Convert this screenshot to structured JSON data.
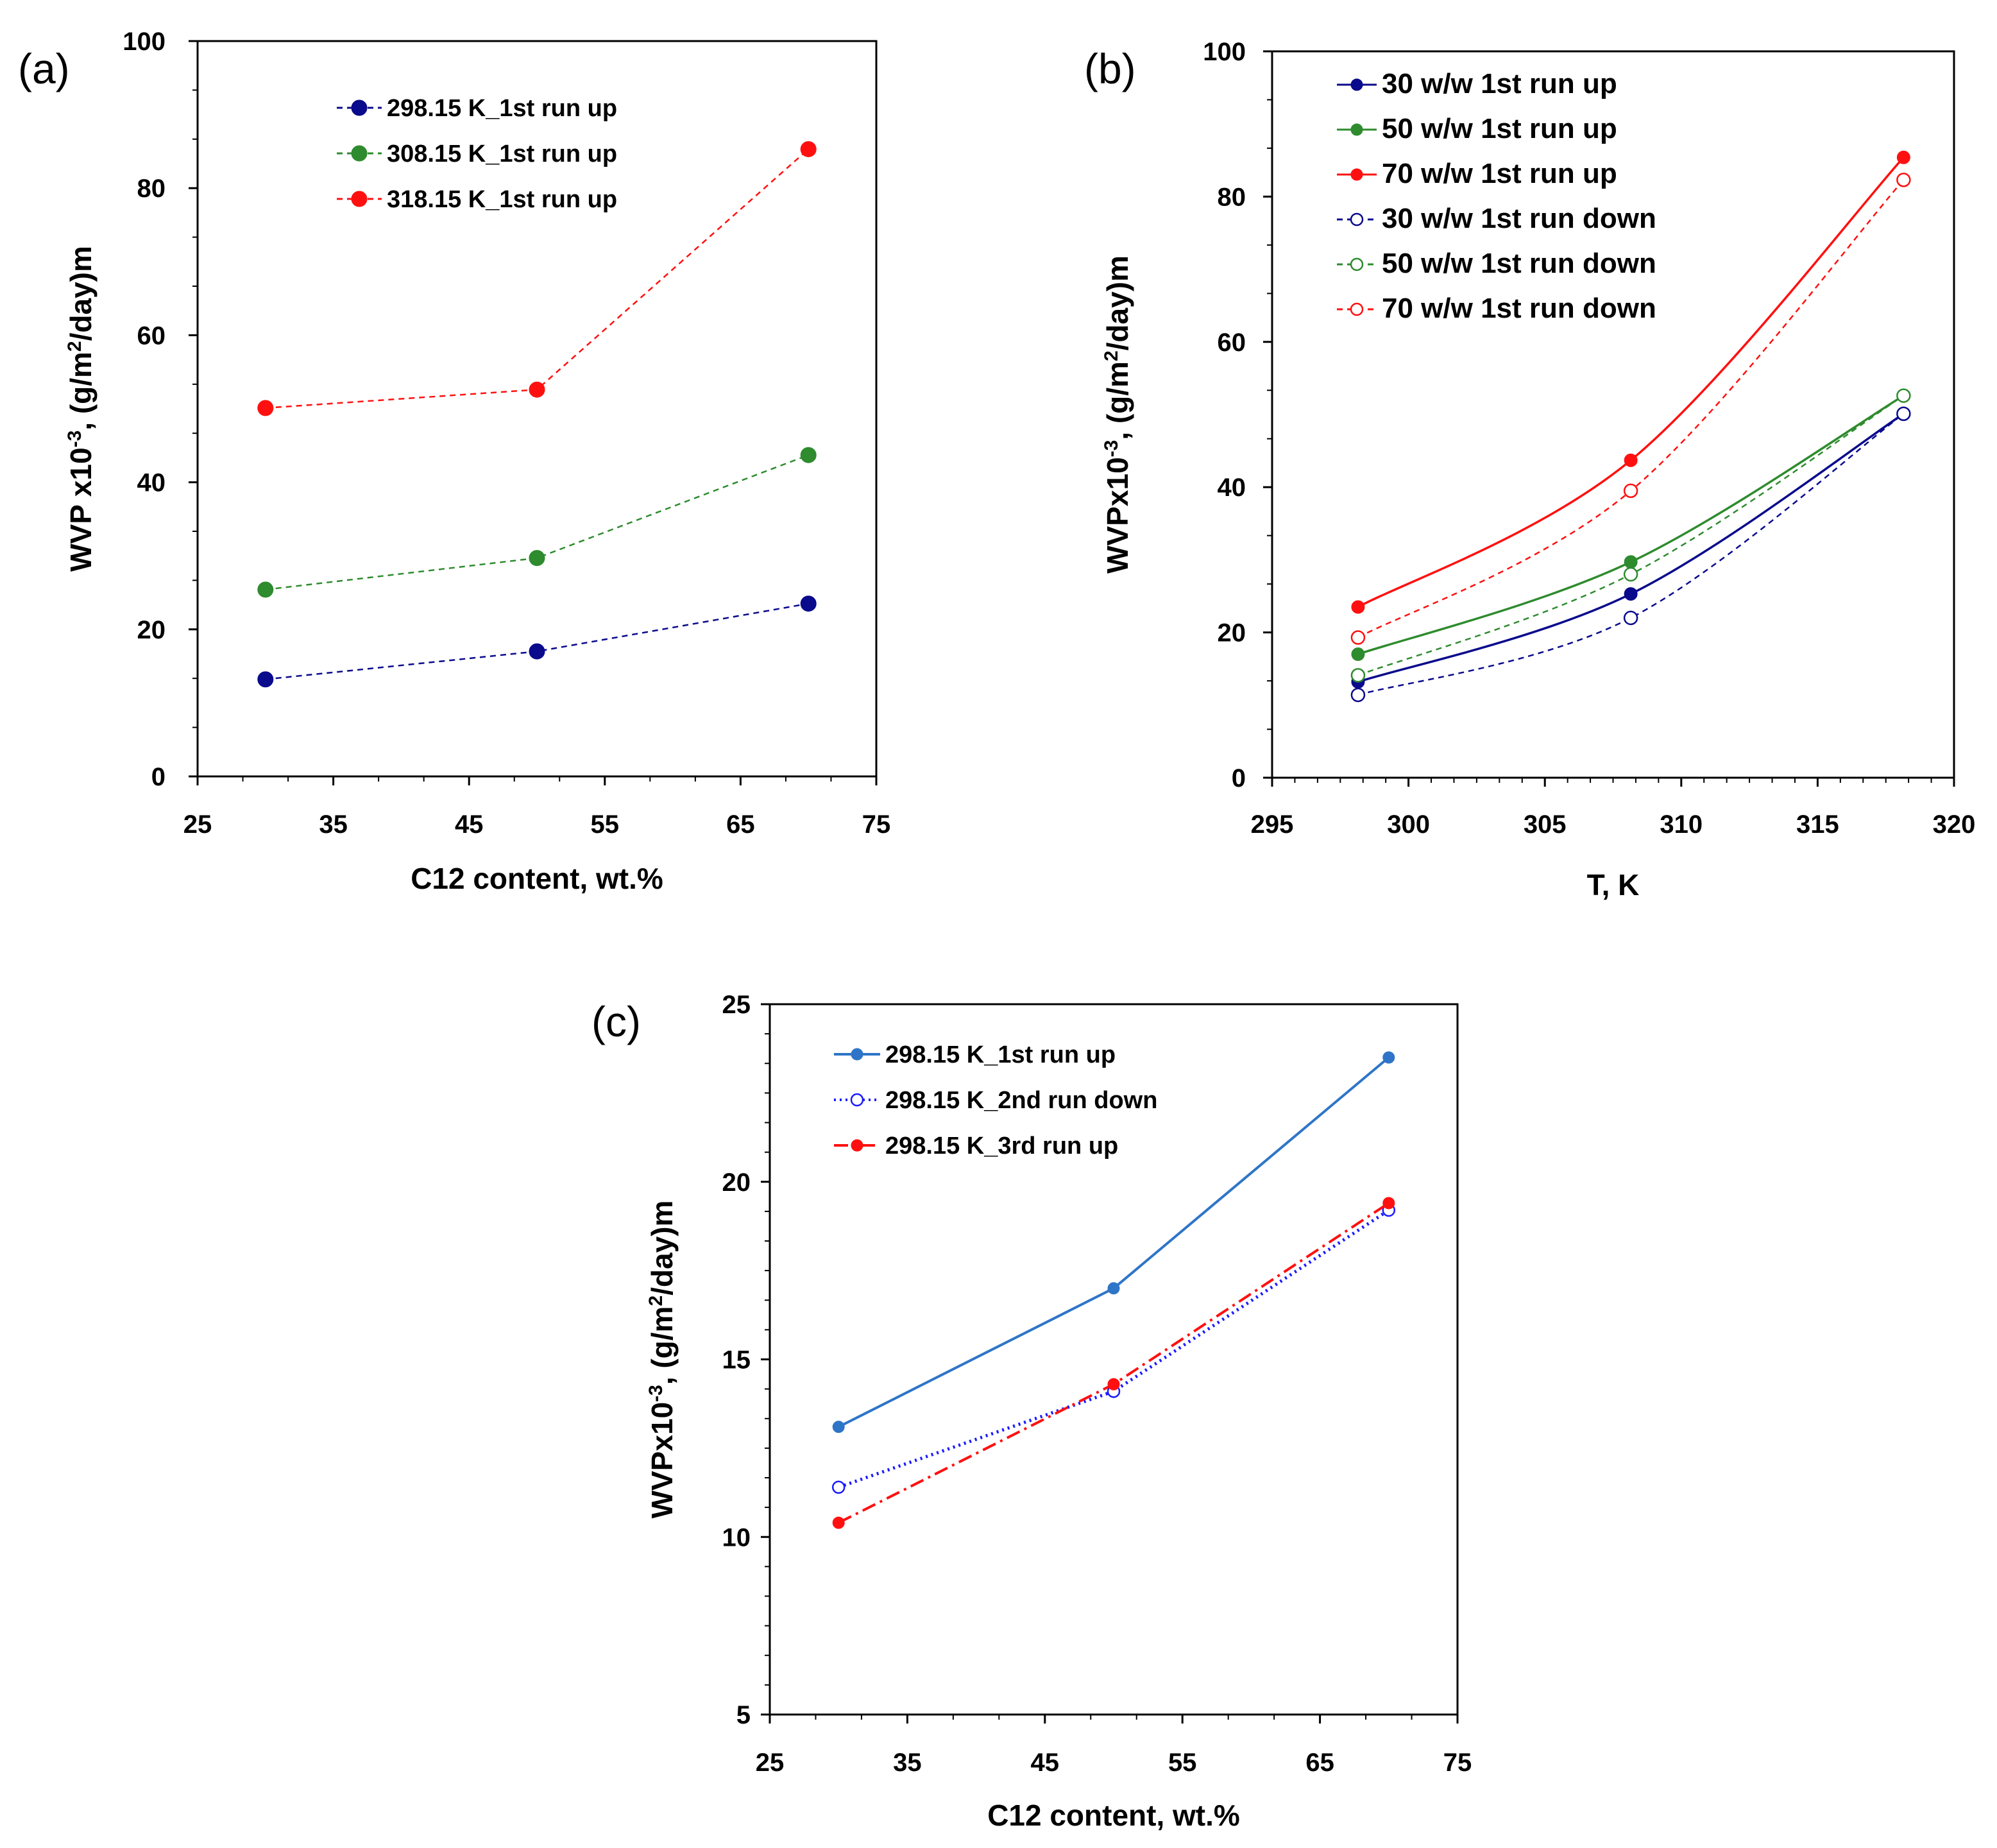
{
  "figure": {
    "panels": [
      "(a)",
      "(b)",
      "(c)"
    ]
  },
  "colors": {
    "navy": "#0a0a8c",
    "green": "#2e8b2e",
    "red": "#ff1010",
    "blue_solid": "#2e75c8",
    "blue_dot": "#1a1aff"
  },
  "chart_data": [
    {
      "type": "line",
      "panel_label": "(a)",
      "title": "",
      "xlabel": "C12 content, wt.%",
      "ylabel_parts": [
        "WVP x10",
        "-3",
        ", (g/m",
        "2",
        "/day)m"
      ],
      "xlim": [
        25,
        75
      ],
      "ylim": [
        0,
        100
      ],
      "xticks": [
        25,
        35,
        45,
        55,
        65,
        75
      ],
      "yticks": [
        0,
        20,
        40,
        60,
        80,
        100
      ],
      "legend_position": "top-center",
      "series": [
        {
          "name": "298.15 K_1st run up",
          "color": "#0a0a8c",
          "style": "dashed",
          "marker": "filled",
          "x": [
            30,
            50,
            70
          ],
          "values": [
            13.2,
            17.0,
            23.5
          ]
        },
        {
          "name": "308.15 K_1st run up",
          "color": "#2e8b2e",
          "style": "dashed",
          "marker": "filled",
          "x": [
            30,
            50,
            70
          ],
          "values": [
            25.4,
            29.7,
            43.7
          ]
        },
        {
          "name": "318.15 K_1st run up",
          "color": "#ff1010",
          "style": "dashed",
          "marker": "filled",
          "x": [
            30,
            50,
            70
          ],
          "values": [
            50.1,
            52.6,
            85.3
          ]
        }
      ]
    },
    {
      "type": "line",
      "panel_label": "(b)",
      "title": "",
      "xlabel": "T, K",
      "ylabel_parts": [
        "WVPx10",
        "-3",
        ", (g/m",
        "2",
        "/day)m"
      ],
      "xlim": [
        295,
        320
      ],
      "ylim": [
        0,
        100
      ],
      "xticks": [
        295,
        300,
        305,
        310,
        315,
        320
      ],
      "yticks": [
        0,
        20,
        40,
        60,
        80,
        100
      ],
      "legend_position": "top-left",
      "series": [
        {
          "name": "30 w/w 1st run up",
          "color": "#0a0a8c",
          "style": "solid",
          "marker": "filled",
          "x": [
            298.15,
            308.15,
            318.15
          ],
          "values": [
            13.2,
            25.3,
            50.1
          ]
        },
        {
          "name": "50 w/w 1st run up",
          "color": "#2e8b2e",
          "style": "solid",
          "marker": "filled",
          "x": [
            298.15,
            308.15,
            318.15
          ],
          "values": [
            17.0,
            29.7,
            52.6
          ]
        },
        {
          "name": "70 w/w 1st run up",
          "color": "#ff1010",
          "style": "solid",
          "marker": "filled",
          "x": [
            298.15,
            308.15,
            318.15
          ],
          "values": [
            23.5,
            43.7,
            85.4
          ]
        },
        {
          "name": "30 w/w 1st run down",
          "color": "#0a0a8c",
          "style": "dashed",
          "marker": "open",
          "x": [
            298.15,
            308.15,
            318.15
          ],
          "values": [
            11.4,
            22.0,
            50.1
          ]
        },
        {
          "name": "50 w/w 1st run down",
          "color": "#2e8b2e",
          "style": "dashed",
          "marker": "open",
          "x": [
            298.15,
            308.15,
            318.15
          ],
          "values": [
            14.1,
            28.0,
            52.6
          ]
        },
        {
          "name": "70 w/w 1st run down",
          "color": "#ff1010",
          "style": "dashed",
          "marker": "open",
          "x": [
            298.15,
            308.15,
            318.15
          ],
          "values": [
            19.3,
            39.5,
            82.3
          ]
        }
      ]
    },
    {
      "type": "line",
      "panel_label": "(c)",
      "title": "",
      "xlabel": "C12 content, wt.%",
      "ylabel_parts": [
        "WVPx10",
        "-3",
        ", (g/m",
        "2",
        "/day)m"
      ],
      "xlim": [
        25,
        75
      ],
      "ylim": [
        5,
        25
      ],
      "xticks": [
        25,
        35,
        45,
        55,
        65,
        75
      ],
      "yticks": [
        5,
        10,
        15,
        20,
        25
      ],
      "legend_position": "top-left",
      "series": [
        {
          "name": "298.15 K_1st run up",
          "color": "#2e75c8",
          "style": "solid",
          "marker": "filled",
          "x": [
            30,
            50,
            70
          ],
          "values": [
            13.1,
            17.0,
            23.5
          ]
        },
        {
          "name": "298.15 K_2nd run down",
          "color": "#1a1aff",
          "style": "dotted",
          "marker": "open",
          "x": [
            30,
            50,
            70
          ],
          "values": [
            11.4,
            14.1,
            19.2
          ]
        },
        {
          "name": "298.15 K_3rd run up",
          "color": "#ff1010",
          "style": "dashdot",
          "marker": "filled",
          "x": [
            30,
            50,
            70
          ],
          "values": [
            10.4,
            14.3,
            19.4
          ]
        }
      ]
    }
  ]
}
